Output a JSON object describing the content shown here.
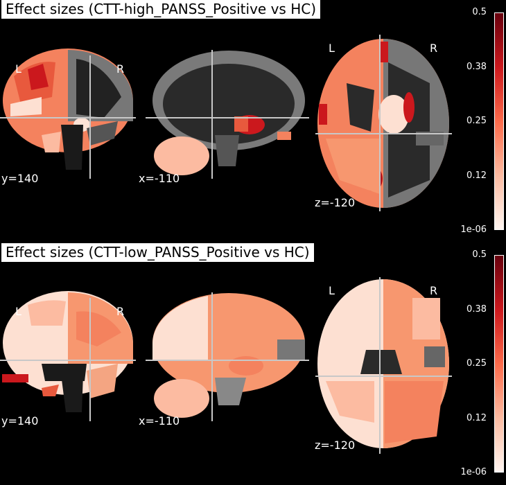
{
  "panels": [
    {
      "title": "Effect sizes (CTT-high_PANSS_Positive vs HC)",
      "views": {
        "coronal": {
          "coord": "y=140",
          "left": "L",
          "right": "R"
        },
        "sagittal": {
          "coord": "x=-110"
        },
        "axial": {
          "coord": "z=-120",
          "left": "L",
          "right": "R"
        }
      },
      "colorbar": {
        "ticks": [
          "0.5",
          "0.38",
          "0.25",
          "0.12",
          "1e-06"
        ]
      }
    },
    {
      "title": "Effect sizes (CTT-low_PANSS_Positive vs HC)",
      "views": {
        "coronal": {
          "coord": "y=140",
          "left": "L",
          "right": "R"
        },
        "sagittal": {
          "coord": "x=-110"
        },
        "axial": {
          "coord": "z=-120",
          "left": "L",
          "right": "R"
        }
      },
      "colorbar": {
        "ticks": [
          "0.5",
          "0.38",
          "0.25",
          "0.12",
          "1e-06"
        ]
      }
    }
  ],
  "colors": {
    "background": "#000000",
    "crosshair": "#c8c8c8",
    "cmap_low": "#fff5f0",
    "cmap_mid": "#fb6a4a",
    "cmap_high": "#67000d"
  }
}
